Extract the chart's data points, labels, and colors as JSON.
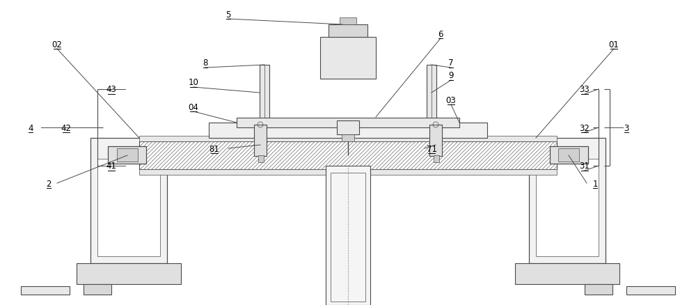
{
  "fig_width": 10.0,
  "fig_height": 4.39,
  "dpi": 100,
  "bg_color": "#ffffff",
  "lc": "#4a4a4a",
  "lw": 0.8,
  "tlw": 0.5,
  "hatch_lw": 0.4
}
